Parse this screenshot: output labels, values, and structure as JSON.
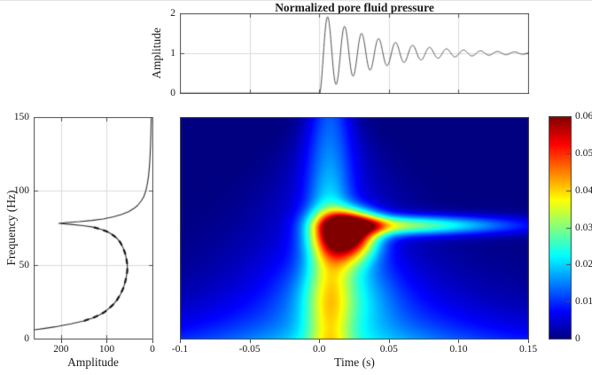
{
  "figure": {
    "title": "Normalized pore fluid pressure",
    "background": "#ffffff",
    "axis_color": "#4d4d4d",
    "grid_color": "#dcdcdc",
    "text_color": "#1a1a1a",
    "signal_curve_color": "#4f4f4f",
    "spectrum_curve_color": "#2b2b2b",
    "dashed_overlay_color": "#141414"
  },
  "chart_data": [
    {
      "id": "pore-pressure-signal",
      "type": "line",
      "title": "Normalized pore fluid pressure",
      "ylabel": "Amplitude",
      "xlim": [
        -0.1,
        0.15
      ],
      "ylim": [
        0,
        2
      ],
      "yticks": [
        {
          "v": 0,
          "label": "0"
        },
        {
          "v": 1,
          "label": "1"
        },
        {
          "v": 2,
          "label": "2"
        }
      ],
      "xticks": [
        {
          "v": -0.05
        },
        {
          "v": 0
        },
        {
          "v": 0.05
        },
        {
          "v": 0.1
        }
      ],
      "xtick_labels_shown": false,
      "grid": true,
      "signal_model": {
        "pre_onset_value": 0,
        "onset_t_s": 0,
        "baseline": 1,
        "envelope_amplitude": 1.06,
        "decay_tau_s": 0.04,
        "oscillation_hz": 82,
        "formula": "y(t) = t<0 ? 0 : clamp(1 - A*exp(-t/tau)*cos(2*pi*f*t), 0, 2)",
        "observed_peaks_t_y": [
          [
            0.007,
            1.95
          ],
          [
            0.019,
            1.58
          ],
          [
            0.03,
            1.43
          ],
          [
            0.041,
            1.32
          ],
          [
            0.053,
            1.25
          ]
        ],
        "settles_to": 1
      }
    },
    {
      "id": "amplitude-spectrum",
      "type": "line",
      "xlabel": "Amplitude",
      "ylabel": "Frequency (Hz)",
      "xlim": [
        260,
        0
      ],
      "x_reversed": true,
      "ylim": [
        0,
        150
      ],
      "xticks": [
        {
          "v": 200,
          "label": "200"
        },
        {
          "v": 100,
          "label": "100"
        },
        {
          "v": 0,
          "label": "0"
        }
      ],
      "yticks": [
        {
          "v": 0,
          "label": "0"
        },
        {
          "v": 50,
          "label": "50"
        },
        {
          "v": 100,
          "label": "100"
        },
        {
          "v": 150,
          "label": "150"
        }
      ],
      "grid": true,
      "resonance_peak": {
        "freq_hz": 78,
        "amplitude": 205
      },
      "points_freq_amplitude": [
        [
          6,
          258
        ],
        [
          7,
          235
        ],
        [
          8,
          213
        ],
        [
          9,
          196
        ],
        [
          10,
          178
        ],
        [
          12,
          150
        ],
        [
          14,
          131
        ],
        [
          16,
          116
        ],
        [
          18,
          105
        ],
        [
          20,
          97
        ],
        [
          23,
          86
        ],
        [
          26,
          78
        ],
        [
          30,
          70
        ],
        [
          34,
          64
        ],
        [
          38,
          60
        ],
        [
          42,
          57
        ],
        [
          46,
          55
        ],
        [
          50,
          55
        ],
        [
          54,
          57
        ],
        [
          58,
          60
        ],
        [
          62,
          65
        ],
        [
          65,
          70
        ],
        [
          68,
          78
        ],
        [
          70,
          86
        ],
        [
          72,
          96
        ],
        [
          74,
          112
        ],
        [
          75.5,
          130
        ],
        [
          76.5,
          152
        ],
        [
          77.3,
          178
        ],
        [
          78,
          205
        ],
        [
          78.6,
          188
        ],
        [
          79.2,
          160
        ],
        [
          80,
          132
        ],
        [
          81,
          108
        ],
        [
          82.5,
          85
        ],
        [
          84,
          68
        ],
        [
          86,
          52
        ],
        [
          88,
          41
        ],
        [
          90,
          33
        ],
        [
          93,
          25
        ],
        [
          96,
          19
        ],
        [
          100,
          14.5
        ],
        [
          105,
          11
        ],
        [
          110,
          8.5
        ],
        [
          115,
          7
        ],
        [
          120,
          5.8
        ],
        [
          126,
          4.8
        ],
        [
          132,
          4
        ],
        [
          138,
          3.4
        ],
        [
          144,
          3
        ],
        [
          150,
          2.6
        ]
      ],
      "dashed_overlay": {
        "f_min": 12,
        "f_max": 76,
        "dash": [
          6,
          5
        ]
      }
    },
    {
      "id": "time-frequency-spectrogram",
      "type": "heatmap",
      "xlabel": "Time (s)",
      "xlim": [
        -0.1,
        0.15
      ],
      "ylim": [
        0,
        150
      ],
      "xticks": [
        {
          "v": -0.1,
          "label": "-0.1"
        },
        {
          "v": -0.05,
          "label": "-0.05"
        },
        {
          "v": 0,
          "label": "0.0"
        },
        {
          "v": 0.05,
          "label": "0.05"
        },
        {
          "v": 0.1,
          "label": "0.10"
        },
        {
          "v": 0.15,
          "label": "0.15"
        }
      ],
      "colormap": "jet",
      "clim": [
        0,
        0.06
      ],
      "colorbar_ticks": [
        {
          "v": 0,
          "label": "0"
        },
        {
          "v": 0.01,
          "label": "0.01"
        },
        {
          "v": 0.02,
          "label": "0.02"
        },
        {
          "v": 0.03,
          "label": "0.03"
        },
        {
          "v": 0.04,
          "label": "0.04"
        },
        {
          "v": 0.05,
          "label": "0.05"
        },
        {
          "v": 0.06,
          "label": "0.06"
        }
      ],
      "features": [
        {
          "name": "resonance-blob",
          "t_s": 0.02,
          "freq_hz": 75,
          "peak_value": 0.06
        },
        {
          "name": "decaying-tail",
          "freq_hz": 77,
          "t_range_s": [
            0.03,
            0.15
          ],
          "value_range": [
            0.008,
            0.03
          ]
        },
        {
          "name": "onset-plume",
          "t_s": 0.007,
          "freq_range_hz": [
            85,
            150
          ],
          "value": 0.013
        },
        {
          "name": "low-frequency-band",
          "freq_range_hz": [
            0,
            20
          ],
          "value": 0.012
        }
      ],
      "model_components": {
        "blob": {
          "amp": 0.068,
          "t0": 0.02,
          "f0": 75,
          "sig_t_minus": 0.022,
          "sig_t_plus": 0.02,
          "sig_f_minus": 20,
          "sig_f_plus": 11
        },
        "tail": {
          "amp": 0.03,
          "f0": 77,
          "sig_f": 6.5,
          "t0": 0.045,
          "sig_t_minus": 0.02,
          "sig_t_plus": 0.09
        },
        "plume": {
          "amp": 0.017,
          "t0": 0.007,
          "sig_t": 0.016,
          "f_ref": 85,
          "f_decay": 70
        },
        "column": {
          "amp": 0.014,
          "t0": 0.015,
          "sig_t": 0.035,
          "f0": 30,
          "sig_f": 26
        },
        "band": {
          "amp": 0.011,
          "f_scale": 20,
          "mod_base": 0.65,
          "mod_amp": 0.35,
          "mod_t0": 0.02,
          "mod_sig": 0.09
        },
        "skirt": {
          "amp": 0.006,
          "t0": 0.008,
          "sig_base": 0.016,
          "sig_slope": 0.00055,
          "f_ref": 150
        },
        "low": {
          "amp": 0.003,
          "t0": 0.02,
          "sig_t": 0.09,
          "f_scale": 45
        }
      }
    }
  ]
}
